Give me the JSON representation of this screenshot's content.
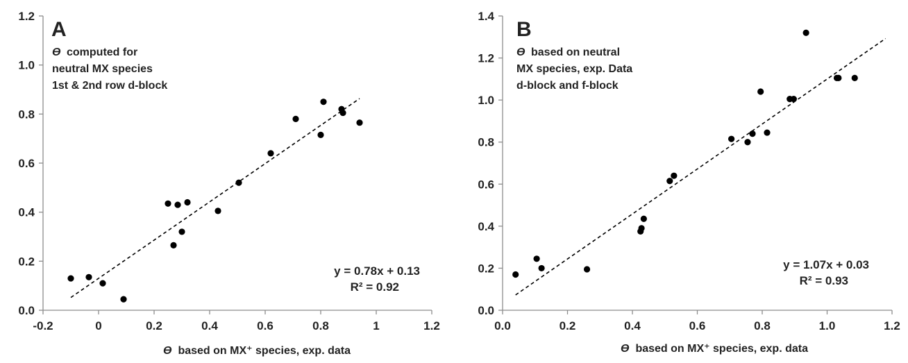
{
  "chart_data": [
    {
      "type": "scatter",
      "panel_label": "A",
      "annotation_lines": [
        "computed for",
        "neutral MX species",
        "1st & 2nd row d-block"
      ],
      "annotation_symbol": "ϴ",
      "xlabel_symbol": "ϴ",
      "xlabel": "based on MX⁺ species, exp. data",
      "ylabel": "",
      "xlim": [
        -0.2,
        1.2
      ],
      "ylim": [
        0.0,
        1.2
      ],
      "xticks": [
        "-0.2",
        "0",
        "0.2",
        "0.4",
        "0.6",
        "0.8",
        "1",
        "1.2"
      ],
      "yticks": [
        "0.0",
        "0.2",
        "0.4",
        "0.6",
        "0.8",
        "1.0",
        "1.2"
      ],
      "grid": false,
      "points": [
        {
          "x": -0.1,
          "y": 0.13
        },
        {
          "x": -0.035,
          "y": 0.135
        },
        {
          "x": 0.015,
          "y": 0.11
        },
        {
          "x": 0.09,
          "y": 0.045
        },
        {
          "x": 0.25,
          "y": 0.435
        },
        {
          "x": 0.285,
          "y": 0.43
        },
        {
          "x": 0.32,
          "y": 0.44
        },
        {
          "x": 0.27,
          "y": 0.265
        },
        {
          "x": 0.3,
          "y": 0.32
        },
        {
          "x": 0.43,
          "y": 0.405
        },
        {
          "x": 0.505,
          "y": 0.52
        },
        {
          "x": 0.62,
          "y": 0.64
        },
        {
          "x": 0.71,
          "y": 0.78
        },
        {
          "x": 0.8,
          "y": 0.715
        },
        {
          "x": 0.81,
          "y": 0.85
        },
        {
          "x": 0.875,
          "y": 0.82
        },
        {
          "x": 0.88,
          "y": 0.805
        },
        {
          "x": 0.94,
          "y": 0.765
        }
      ],
      "trendline": {
        "slope": 0.78,
        "intercept": 0.13,
        "x_range": [
          -0.1,
          0.94
        ],
        "style": "dashed"
      },
      "equation": "y = 0.78x + 0.13",
      "r2": "R² = 0.92",
      "marker_color": "#000000"
    },
    {
      "type": "scatter",
      "panel_label": "B",
      "annotation_lines": [
        "based on  neutral",
        "MX species, exp. Data",
        "d-block and f-block"
      ],
      "annotation_symbol": "ϴ",
      "xlabel_symbol": "ϴ",
      "xlabel": "based on MX⁺ species, exp. data",
      "ylabel": "",
      "xlim": [
        0.0,
        1.2
      ],
      "ylim": [
        0.0,
        1.4
      ],
      "xticks": [
        "0.0",
        "0.2",
        "0.4",
        "0.6",
        "0.8",
        "1.0",
        "1.2"
      ],
      "yticks": [
        "0.0",
        "0.2",
        "0.4",
        "0.6",
        "0.8",
        "1.0",
        "1.2",
        "1.4"
      ],
      "grid": false,
      "points": [
        {
          "x": 0.04,
          "y": 0.17
        },
        {
          "x": 0.105,
          "y": 0.245
        },
        {
          "x": 0.12,
          "y": 0.2
        },
        {
          "x": 0.26,
          "y": 0.195
        },
        {
          "x": 0.425,
          "y": 0.375
        },
        {
          "x": 0.428,
          "y": 0.39
        },
        {
          "x": 0.435,
          "y": 0.435
        },
        {
          "x": 0.515,
          "y": 0.615
        },
        {
          "x": 0.528,
          "y": 0.64
        },
        {
          "x": 0.705,
          "y": 0.815
        },
        {
          "x": 0.755,
          "y": 0.8
        },
        {
          "x": 0.77,
          "y": 0.84
        },
        {
          "x": 0.795,
          "y": 1.04
        },
        {
          "x": 0.815,
          "y": 0.845
        },
        {
          "x": 0.885,
          "y": 1.005
        },
        {
          "x": 0.897,
          "y": 1.005
        },
        {
          "x": 0.935,
          "y": 1.32
        },
        {
          "x": 1.03,
          "y": 1.105
        },
        {
          "x": 1.035,
          "y": 1.105
        },
        {
          "x": 1.085,
          "y": 1.105
        }
      ],
      "trendline": {
        "slope": 1.07,
        "intercept": 0.03,
        "x_range": [
          0.04,
          1.18
        ],
        "style": "dashed"
      },
      "equation": "y = 1.07x + 0.03",
      "r2": "R² = 0.93",
      "marker_color": "#000000"
    }
  ]
}
